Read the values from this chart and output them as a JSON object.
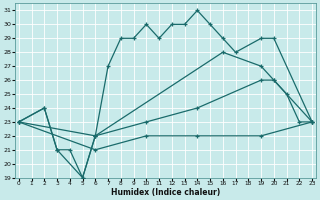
{
  "xlabel": "Humidex (Indice chaleur)",
  "bg_color": "#c8eaea",
  "line_color": "#1a6b6b",
  "grid_color": "#a8c8c8",
  "line1_x": [
    0,
    2,
    3,
    5,
    6,
    7,
    8,
    9,
    10,
    11,
    12,
    13,
    14,
    15,
    16,
    17,
    19,
    20,
    23
  ],
  "line1_y": [
    23,
    24,
    21,
    19,
    22,
    27,
    29,
    29,
    30,
    29,
    30,
    30,
    31,
    30,
    29,
    28,
    29,
    29,
    23
  ],
  "line2_x": [
    0,
    2,
    3,
    4,
    5,
    6,
    16,
    19,
    20,
    21,
    22,
    23
  ],
  "line2_y": [
    23,
    24,
    21,
    21,
    19,
    22,
    28,
    27,
    26,
    25,
    23,
    23
  ],
  "line3_x": [
    0,
    6,
    10,
    14,
    19,
    20,
    23
  ],
  "line3_y": [
    23,
    22,
    23,
    24,
    26,
    26,
    23
  ],
  "line4_x": [
    0,
    6,
    10,
    14,
    19,
    23
  ],
  "line4_y": [
    23,
    21,
    22,
    22,
    22,
    23
  ],
  "xlim": [
    -0.3,
    23.3
  ],
  "ylim": [
    19,
    31.5
  ],
  "yticks": [
    19,
    20,
    21,
    22,
    23,
    24,
    25,
    26,
    27,
    28,
    29,
    30,
    31
  ],
  "xticks": [
    0,
    1,
    2,
    3,
    4,
    5,
    6,
    7,
    8,
    9,
    10,
    11,
    12,
    13,
    14,
    15,
    16,
    17,
    18,
    19,
    20,
    21,
    22,
    23
  ]
}
